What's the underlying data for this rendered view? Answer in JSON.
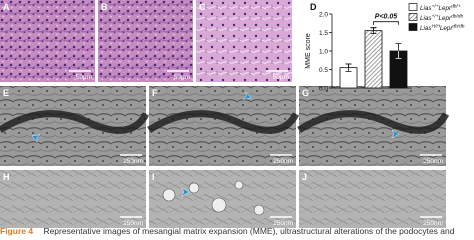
{
  "figure": {
    "panels": [
      {
        "label": "A",
        "scale": "50μm"
      },
      {
        "label": "B",
        "scale": "50μm"
      },
      {
        "label": "C",
        "scale": "50μm"
      },
      {
        "label": "E",
        "scale": "250nm"
      },
      {
        "label": "F",
        "scale": "250nm"
      },
      {
        "label": "G",
        "scale": "250nm"
      },
      {
        "label": "H",
        "scale": "250nm"
      },
      {
        "label": "I",
        "scale": "250nm"
      },
      {
        "label": "J",
        "scale": "250nm"
      }
    ],
    "caption": {
      "label": "Figure 4",
      "text": "Representative images of mesangial matrix expansion (MME), ultrastructural alterations of the podocytes and"
    }
  },
  "chart_data": {
    "type": "bar",
    "panel_label": "D",
    "y_label": "MME score",
    "ylim": [
      0,
      2
    ],
    "yticks": [
      {
        "value": 0,
        "label": "0.0"
      },
      0.5,
      {
        "value": 1,
        "label": "1.0"
      },
      1.5,
      {
        "value": 2,
        "label": "2.0"
      }
    ],
    "annotation": "P<0.05",
    "series": [
      {
        "name": [
          "Lias",
          "+/+",
          "Lepr",
          "db/+"
        ],
        "color": "#ffffff",
        "values": [
          0.55
        ],
        "errors": [
          0.1
        ]
      },
      {
        "name": [
          "Lias",
          "+/+",
          "Lepr",
          "db/db"
        ],
        "color": "#c8c8c8",
        "values": [
          1.55
        ],
        "errors": [
          0.08
        ]
      },
      {
        "name": [
          "Lias",
          "H/H",
          "Lepr",
          "db/db"
        ],
        "color": "#111111",
        "values": [
          1.0
        ],
        "errors": [
          0.2
        ]
      }
    ]
  }
}
